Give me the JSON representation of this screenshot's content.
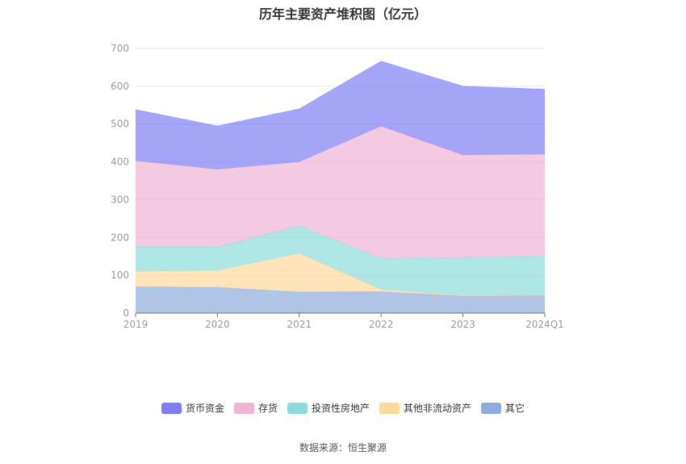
{
  "title": "历年主要资产堆积图（亿元）",
  "source": "数据来源：恒生聚源",
  "chart_data": {
    "type": "area",
    "stacked": true,
    "categories": [
      "2019",
      "2020",
      "2021",
      "2022",
      "2023",
      "2024Q1"
    ],
    "ylim": [
      0,
      700
    ],
    "yticks": [
      0,
      100,
      200,
      300,
      400,
      500,
      600,
      700
    ],
    "grid": true,
    "legend_position": "bottom",
    "series": [
      {
        "name": "其它",
        "color": "#8fabdc",
        "values": [
          70,
          68,
          56,
          57,
          45,
          46
        ]
      },
      {
        "name": "其他非流动资产",
        "color": "#ffd99b",
        "values": [
          40,
          45,
          102,
          5,
          1,
          1
        ]
      },
      {
        "name": "投资性房地产",
        "color": "#8ddcdc",
        "values": [
          65,
          62,
          73,
          82,
          101,
          103
        ]
      },
      {
        "name": "存货",
        "color": "#f0b4d7",
        "values": [
          228,
          205,
          169,
          350,
          271,
          270
        ]
      },
      {
        "name": "货币资金",
        "color": "#7f7ff5",
        "values": [
          135,
          115,
          140,
          172,
          182,
          172
        ]
      }
    ],
    "legend_order": [
      "货币资金",
      "存货",
      "投资性房地产",
      "其他非流动资产",
      "其它"
    ]
  }
}
